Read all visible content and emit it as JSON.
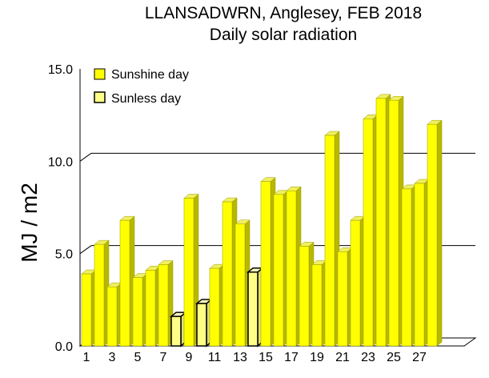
{
  "chart_data": {
    "type": "bar",
    "title": "LLANSADWRN, Anglesey, FEB 2018",
    "subtitle": "Daily solar radiation",
    "ylabel": "MJ / m2",
    "xlabel": "",
    "ylim": [
      0,
      15
    ],
    "yticks": [
      "0.0",
      "5.0",
      "10.0",
      "15.0"
    ],
    "xtick_labels": [
      "1",
      "3",
      "5",
      "7",
      "9",
      "11",
      "13",
      "15",
      "17",
      "19",
      "21",
      "23",
      "25",
      "27"
    ],
    "grid": true,
    "legend_position": "top-left",
    "legend": [
      {
        "label": "Sunshine day",
        "fill": "#ffff00"
      },
      {
        "label": "Sunless day",
        "fill": "#ffff88"
      }
    ],
    "days": [
      1,
      2,
      3,
      4,
      5,
      6,
      7,
      8,
      9,
      10,
      11,
      12,
      13,
      14,
      15,
      16,
      17,
      18,
      19,
      20,
      21,
      22,
      23,
      24,
      25,
      26,
      27,
      28
    ],
    "values": [
      3.9,
      5.5,
      3.2,
      6.8,
      3.7,
      4.1,
      4.4,
      1.6,
      8.0,
      2.3,
      4.2,
      7.8,
      6.6,
      4.0,
      8.9,
      8.2,
      8.4,
      5.4,
      4.4,
      11.4,
      5.1,
      6.8,
      12.3,
      13.4,
      13.3,
      8.5,
      8.8,
      12.0
    ],
    "sunless": [
      false,
      false,
      false,
      false,
      false,
      false,
      false,
      true,
      false,
      true,
      false,
      false,
      false,
      true,
      false,
      false,
      false,
      false,
      false,
      false,
      false,
      false,
      false,
      false,
      false,
      false,
      false,
      false
    ],
    "colors": {
      "bar": "#ffff00",
      "bar_side": "#b8b800",
      "bar_top": "#f0f060",
      "sunless_fill": "#ffff88",
      "edge": "#000000"
    }
  }
}
